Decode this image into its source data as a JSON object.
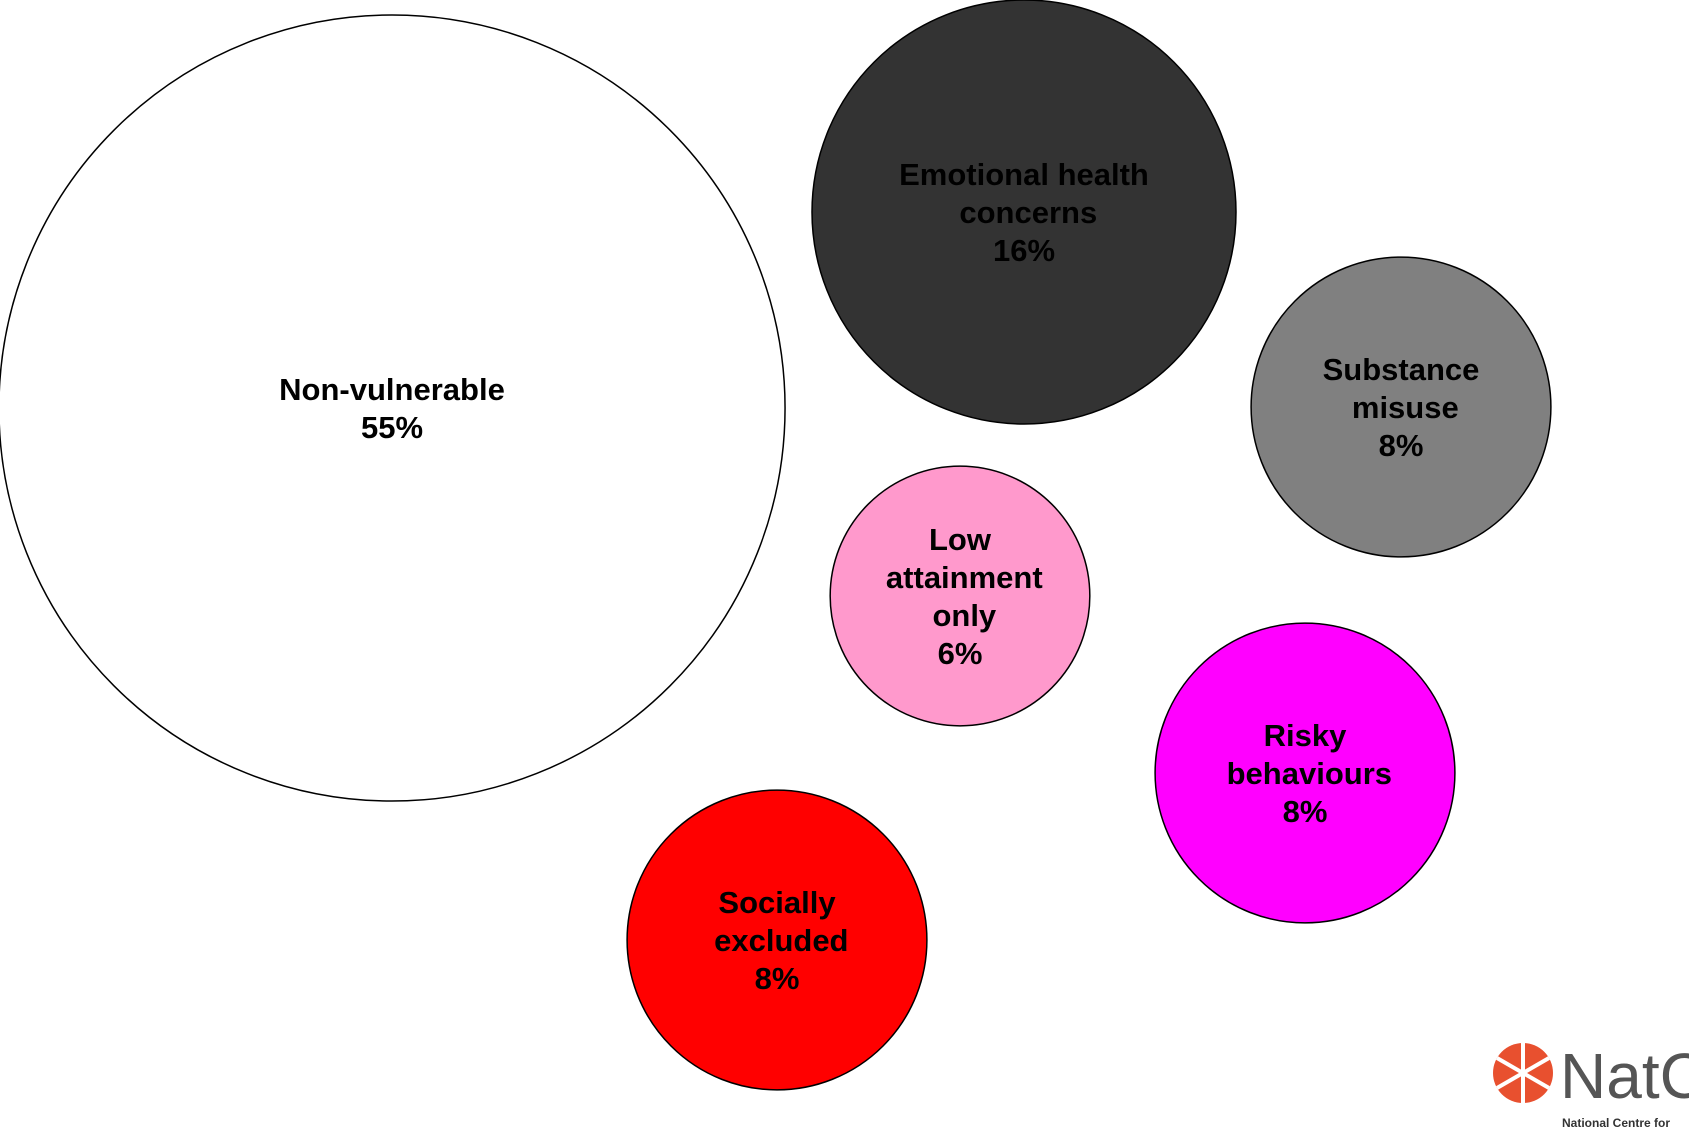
{
  "chart_data": {
    "type": "bubble",
    "categories": [
      "Non-vulnerable",
      "Emotional health concerns",
      "Substance misuse",
      "Low attainment only",
      "Risky behaviours",
      "Socially excluded"
    ],
    "values": [
      55,
      16,
      8,
      6,
      8,
      8
    ],
    "value_labels": [
      "55%",
      "16%",
      "8%",
      "6%",
      "8%",
      "8%"
    ],
    "colors": [
      "#ffffff",
      "#333333",
      "#808080",
      "#ff99cc",
      "#ff00ff",
      "#ff0000"
    ]
  },
  "logo": {
    "name": "NatC",
    "tagline": "National Centre for"
  }
}
